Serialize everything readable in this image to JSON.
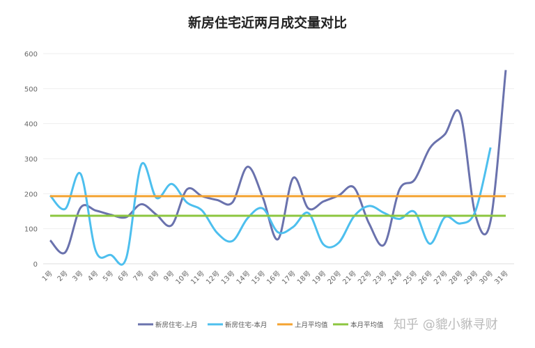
{
  "chart_data": {
    "type": "line",
    "title": "新房住宅近两月成交量对比",
    "categories": [
      "1号",
      "2号",
      "3号",
      "4号",
      "5号",
      "6号",
      "7号",
      "8号",
      "9号",
      "10号",
      "11号",
      "12号",
      "13号",
      "14号",
      "15号",
      "16号",
      "17号",
      "18号",
      "19号",
      "20号",
      "21号",
      "22号",
      "23号",
      "24号",
      "25号",
      "26号",
      "27号",
      "28号",
      "29号",
      "30号",
      "31号"
    ],
    "ylim": [
      0,
      600
    ],
    "yticks": [
      0,
      100,
      200,
      300,
      400,
      500,
      600
    ],
    "grid": true,
    "legend_position": "bottom",
    "series": [
      {
        "name": "新房住宅-上月",
        "color": "#6a72ad",
        "smooth": true,
        "values": [
          67,
          33,
          160,
          152,
          140,
          133,
          170,
          140,
          110,
          212,
          193,
          182,
          175,
          277,
          190,
          70,
          245,
          158,
          178,
          195,
          218,
          115,
          55,
          212,
          240,
          330,
          370,
          428,
          140,
          122,
          553
        ]
      },
      {
        "name": "新房住宅-本月",
        "color": "#4dbfee",
        "smooth": true,
        "values": [
          195,
          157,
          257,
          37,
          25,
          15,
          283,
          188,
          228,
          175,
          152,
          88,
          65,
          130,
          158,
          90,
          105,
          145,
          55,
          60,
          135,
          165,
          145,
          128,
          148,
          57,
          133,
          115,
          150,
          332,
          null
        ]
      },
      {
        "name": "上月平均值",
        "color": "#f4a330",
        "constant": 193
      },
      {
        "name": "本月平均值",
        "color": "#8cc63f",
        "constant": 137
      }
    ]
  },
  "watermark": "知乎 @貔小貅寻财"
}
